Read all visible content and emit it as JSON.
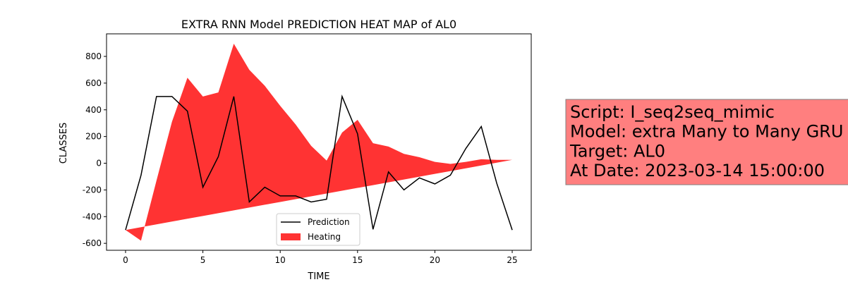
{
  "chart_data": {
    "type": "line_area",
    "title": "EXTRA RNN Model PREDICTION HEAT MAP of AL0",
    "x_label": "TIME",
    "y_label": "CLASSES",
    "x": [
      0,
      1,
      2,
      3,
      4,
      5,
      6,
      7,
      8,
      9,
      10,
      11,
      12,
      13,
      14,
      15,
      16,
      17,
      18,
      19,
      20,
      21,
      22,
      23,
      24,
      25
    ],
    "series": [
      {
        "name": "Prediction",
        "color": "#000000",
        "values": [
          -500,
          -90,
          500,
          500,
          390,
          -180,
          50,
          500,
          -290,
          -180,
          -245,
          -245,
          -290,
          -270,
          500,
          220,
          -495,
          -65,
          -200,
          -110,
          -155,
          -90,
          110,
          275,
          -150,
          -500
        ]
      },
      {
        "name": "Heating",
        "color": "#ff3333",
        "values": [
          -500,
          -580,
          -130,
          310,
          640,
          500,
          530,
          895,
          700,
          580,
          430,
          290,
          130,
          20,
          230,
          325,
          150,
          125,
          70,
          45,
          10,
          -5,
          10,
          30,
          25,
          25
        ],
        "lower": [
          -500,
          -479,
          -458,
          -437,
          -416,
          -395,
          -374,
          -353,
          -332,
          -311,
          -290,
          -269,
          -248,
          -227,
          -206,
          -185,
          -164,
          -143,
          -122,
          -101,
          -80,
          -59,
          -38,
          -17,
          4,
          25
        ]
      }
    ],
    "xlim": [
      -1.23,
      26.23
    ],
    "ylim": [
      -652,
      969
    ],
    "xticks": [
      0,
      5,
      10,
      15,
      20,
      25
    ],
    "yticks": [
      -600,
      -400,
      -200,
      0,
      200,
      400,
      600,
      800
    ],
    "legend": "lower center",
    "annotation": [
      "Script: I_seq2seq_mimic",
      "Model: extra Many to Many GRU",
      "Target: AL0",
      "At Date: 2023-03-14 15:00:00"
    ]
  }
}
